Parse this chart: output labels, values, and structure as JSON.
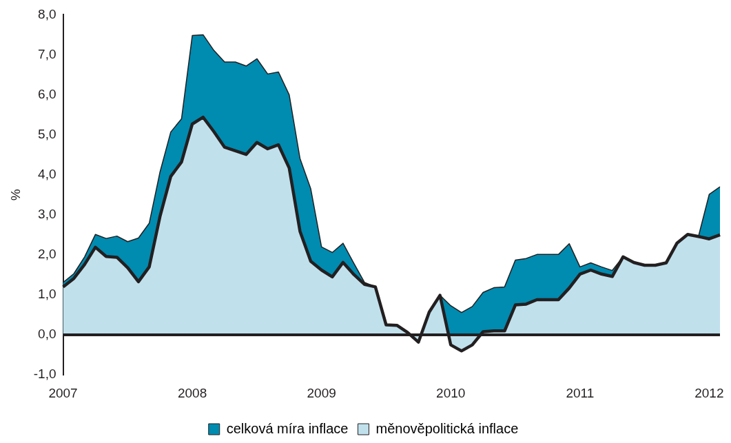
{
  "chart_data": {
    "type": "area",
    "ylabel": "%",
    "categories": [
      "2007",
      null,
      null,
      null,
      null,
      null,
      null,
      null,
      null,
      null,
      null,
      null,
      "2008",
      null,
      null,
      null,
      null,
      null,
      null,
      null,
      null,
      null,
      null,
      null,
      "2009",
      null,
      null,
      null,
      null,
      null,
      null,
      null,
      null,
      null,
      null,
      null,
      "2010",
      null,
      null,
      null,
      null,
      null,
      null,
      null,
      null,
      null,
      null,
      null,
      "2011",
      null,
      null,
      null,
      null,
      null,
      null,
      null,
      null,
      null,
      null,
      null,
      "2012",
      null
    ],
    "series": [
      {
        "name": "celková míra inflace",
        "color": "#008bb0",
        "values": [
          1.31,
          1.53,
          1.95,
          2.51,
          2.41,
          2.47,
          2.33,
          2.42,
          2.79,
          4.07,
          5.07,
          5.4,
          7.48,
          7.5,
          7.11,
          6.82,
          6.82,
          6.72,
          6.9,
          6.52,
          6.57,
          6.0,
          4.41,
          3.65,
          2.2,
          2.06,
          2.29,
          1.79,
          1.31,
          1.2,
          0.25,
          0.24,
          0.06,
          -0.18,
          0.57,
          0.99,
          0.73,
          0.56,
          0.71,
          1.06,
          1.18,
          1.2,
          1.87,
          1.91,
          2.01,
          2.01,
          2.01,
          2.28,
          1.7,
          1.8,
          1.7,
          1.61,
          1.95,
          1.81,
          1.74,
          1.74,
          1.8,
          2.29,
          2.51,
          2.46,
          3.51,
          3.7
        ]
      },
      {
        "name": "měnověpolitická inflace",
        "color": "#c0e0ec",
        "values": [
          1.2,
          1.41,
          1.76,
          2.19,
          1.96,
          1.94,
          1.68,
          1.33,
          1.7,
          2.96,
          3.96,
          4.32,
          5.27,
          5.44,
          5.08,
          4.69,
          4.6,
          4.51,
          4.81,
          4.65,
          4.75,
          4.17,
          2.59,
          1.84,
          1.62,
          1.45,
          1.81,
          1.51,
          1.26,
          1.2,
          0.25,
          0.24,
          0.06,
          -0.18,
          0.57,
          0.99,
          -0.25,
          -0.4,
          -0.25,
          0.08,
          0.1,
          0.1,
          0.75,
          0.77,
          0.88,
          0.88,
          0.88,
          1.17,
          1.52,
          1.62,
          1.52,
          1.46,
          1.95,
          1.81,
          1.74,
          1.74,
          1.8,
          2.29,
          2.51,
          2.46,
          2.4,
          2.5
        ]
      }
    ],
    "ylim": [
      -1,
      8
    ],
    "yticks": [
      {
        "value": -1,
        "label": "-1,0"
      },
      {
        "value": 0,
        "label": "0,0"
      },
      {
        "value": 1,
        "label": "1,0"
      },
      {
        "value": 2,
        "label": "2,0"
      },
      {
        "value": 3,
        "label": "3,0"
      },
      {
        "value": 4,
        "label": "4,0"
      },
      {
        "value": 5,
        "label": "5,0"
      },
      {
        "value": 6,
        "label": "6,0"
      },
      {
        "value": 7,
        "label": "7,0"
      },
      {
        "value": 8,
        "label": "8,0"
      }
    ],
    "ref_lines": [
      {
        "axis": "y",
        "value": 0,
        "color": "#231f20"
      }
    ],
    "grid": false,
    "legend": "bottom",
    "marker": "none",
    "line_style": "solid"
  }
}
